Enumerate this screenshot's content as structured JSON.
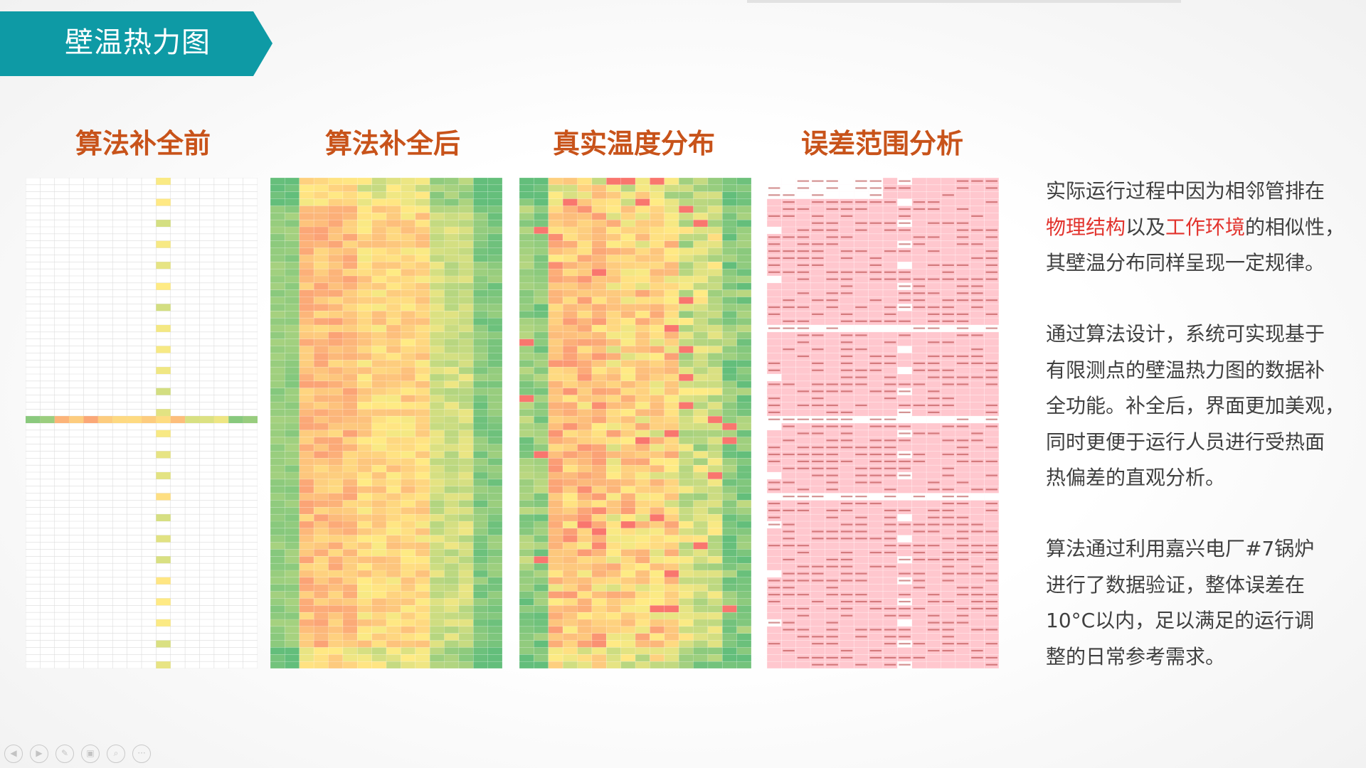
{
  "slide": {
    "title": "壁温热力图"
  },
  "panels": [
    {
      "id": "before",
      "title": "算法补全前"
    },
    {
      "id": "after",
      "title": "算法补全后"
    },
    {
      "id": "real",
      "title": "真实温度分布"
    },
    {
      "id": "error",
      "title": "误差范围分析"
    }
  ],
  "description": {
    "p1": {
      "line1": "实际运行过程中因为相邻管排在",
      "line2_hl1": "物理结构",
      "line2_mid": "以及",
      "line2_hl2": "工作环境",
      "line2_end": "的相似性，",
      "line3": "其壁温分布同样呈现一定规律。"
    },
    "p2": {
      "line1": "通过算法设计，系统可实现基于",
      "line2": "有限测点的壁温热力图的数据补",
      "line3": "全功能。补全后，界面更加美观，",
      "line4": "同时更便于运行人员进行受热面",
      "line5": "热偏差的直观分析。"
    },
    "p3": {
      "line1": "算法通过利用嘉兴电厂#7锅炉",
      "line2": "进行了数据验证，整体误差在",
      "line3": "10°C以内，足以满足的运行调",
      "line4": "整的日常参考需求。"
    }
  },
  "colors": {
    "banner": "#0e9aa5",
    "panel_title": "#c8531a",
    "highlight": "#e2332d",
    "heat_low": "#f8696b",
    "heat_mid": "#ffeb84",
    "heat_high": "#63be7b",
    "error_cell": "#ffc7ce"
  },
  "nav_icons": [
    "prev-icon",
    "next-icon",
    "pen-icon",
    "screens-icon",
    "zoom-icon",
    "more-icon"
  ]
}
